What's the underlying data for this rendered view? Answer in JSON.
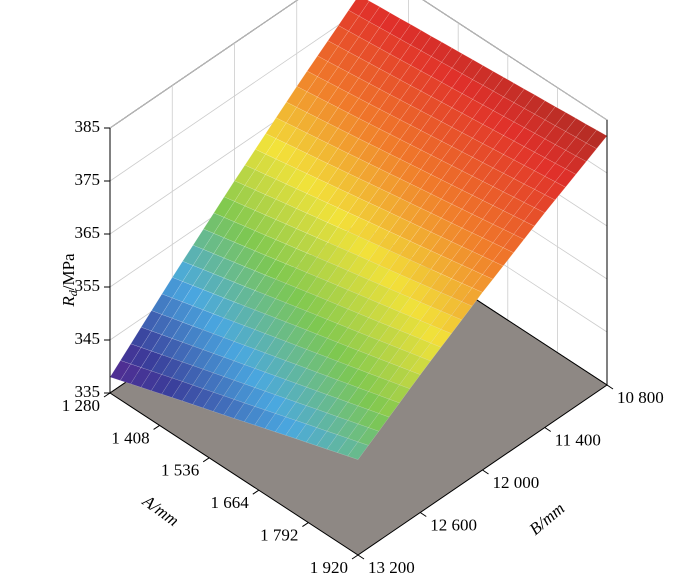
{
  "chart_data": {
    "type": "surface3d",
    "x_label": "A/mm",
    "y_label": "B/mm",
    "z_label": {
      "symbol": "R",
      "subscript": "d",
      "unit": "/MPa"
    },
    "x": [
      1280,
      1440,
      1600,
      1760,
      1920
    ],
    "y": [
      13200,
      12600,
      12000,
      11400,
      10800
    ],
    "z": [
      [
        338,
        341.8,
        345.5,
        349.3,
        353
      ],
      [
        348.8,
        351.8,
        354.9,
        357.9,
        361.0
      ],
      [
        359,
        361.4,
        363.8,
        366.1,
        368.5
      ],
      [
        368.8,
        370.4,
        372.1,
        373.8,
        375.5
      ],
      [
        378,
        379,
        380,
        381,
        382
      ]
    ],
    "xlim": [
      1280,
      1920
    ],
    "ylim": [
      10800,
      13200
    ],
    "zlim": [
      335,
      385
    ],
    "xticks": [
      {
        "value": 1280,
        "label": "1 280"
      },
      {
        "value": 1408,
        "label": "1 408"
      },
      {
        "value": 1536,
        "label": "1 536"
      },
      {
        "value": 1664,
        "label": "1 664"
      },
      {
        "value": 1792,
        "label": "1 792"
      },
      {
        "value": 1920,
        "label": "1 920"
      }
    ],
    "yticks": [
      {
        "value": 10800,
        "label": "10 800"
      },
      {
        "value": 11400,
        "label": "11 400"
      },
      {
        "value": 12000,
        "label": "12 000"
      },
      {
        "value": 12600,
        "label": "12 600"
      },
      {
        "value": 13200,
        "label": "13 200"
      }
    ],
    "zticks": [
      335,
      345,
      355,
      365,
      375,
      385
    ],
    "colormap": [
      "#6a1a8a",
      "#3a3d9a",
      "#4aa8e0",
      "#7ec850",
      "#f2e23a",
      "#f07a2a",
      "#e0302a",
      "#8a2a20"
    ],
    "floor_color": "#8e8884",
    "grid": true
  }
}
